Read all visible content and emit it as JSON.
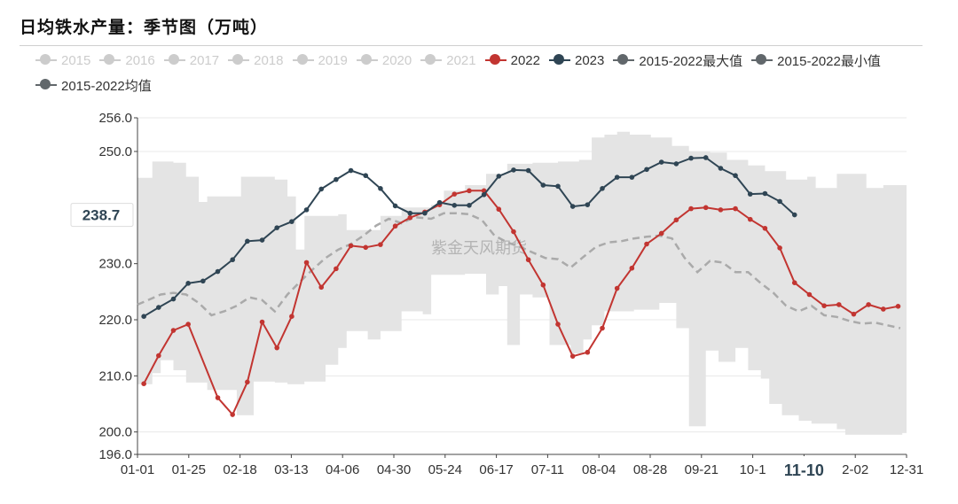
{
  "title": "日均铁水产量：季节图（万吨）",
  "watermark": "紫金天风期货",
  "colors": {
    "series_2022": "#c23531",
    "series_2023": "#2f4554",
    "range_fill": "#e4e4e4",
    "avg_line": "#aaaaaa",
    "inactive": "#cccccc",
    "active_legend_text": "#333333",
    "inactive_legend_text": "#cccccc"
  },
  "legend": [
    {
      "name": "2015",
      "active": false,
      "color": "#cccccc"
    },
    {
      "name": "2016",
      "active": false,
      "color": "#cccccc"
    },
    {
      "name": "2017",
      "active": false,
      "color": "#cccccc"
    },
    {
      "name": "2018",
      "active": false,
      "color": "#cccccc"
    },
    {
      "name": "2019",
      "active": false,
      "color": "#cccccc"
    },
    {
      "name": "2020",
      "active": false,
      "color": "#cccccc"
    },
    {
      "name": "2021",
      "active": false,
      "color": "#cccccc"
    },
    {
      "name": "2022",
      "active": true,
      "color": "#c23531"
    },
    {
      "name": "2023",
      "active": true,
      "color": "#2f4554"
    },
    {
      "name": "2015-2022最大值",
      "active": true,
      "color": "#61676b"
    },
    {
      "name": "2015-2022最小值",
      "active": true,
      "color": "#61676b"
    },
    {
      "name": "2015-2022均值",
      "active": true,
      "color": "#61676b"
    }
  ],
  "chart_data": {
    "type": "line",
    "x_start": "01-01",
    "x_end": "12-31",
    "xlim_days": [
      1,
      365
    ],
    "ylim": [
      196,
      256
    ],
    "y_ticks": [
      196.0,
      200.0,
      210.0,
      220.0,
      230.0,
      250.0,
      256.0
    ],
    "x_tick_labels": [
      "01-01",
      "01-25",
      "02-18",
      "03-13",
      "04-06",
      "04-30",
      "05-24",
      "06-17",
      "07-11",
      "08-04",
      "08-28",
      "09-21",
      "10-1",
      "11-10",
      "2-02",
      "12-31"
    ],
    "pointer": {
      "y_label": "238.7",
      "x_label": "11-10"
    },
    "band_max": [
      [
        1,
        245.3
      ],
      [
        5,
        245.3
      ],
      [
        8,
        248.2
      ],
      [
        18,
        248.0
      ],
      [
        24,
        245.5
      ],
      [
        30,
        241.0
      ],
      [
        34,
        242.0
      ],
      [
        48,
        242.0
      ],
      [
        50,
        245.5
      ],
      [
        62,
        245.5
      ],
      [
        66,
        245.0
      ],
      [
        72,
        242.0
      ],
      [
        76,
        232.5
      ],
      [
        80,
        238.5
      ],
      [
        90,
        238.5
      ],
      [
        96,
        238.8
      ],
      [
        100,
        236.0
      ],
      [
        110,
        236.0
      ],
      [
        116,
        238.5
      ],
      [
        126,
        240.0
      ],
      [
        140,
        240.5
      ],
      [
        146,
        243.0
      ],
      [
        156,
        244.0
      ],
      [
        166,
        246.0
      ],
      [
        176,
        247.8
      ],
      [
        188,
        248.0
      ],
      [
        200,
        248.2
      ],
      [
        210,
        248.5
      ],
      [
        216,
        252.5
      ],
      [
        222,
        253.0
      ],
      [
        228,
        253.5
      ],
      [
        234,
        253.0
      ],
      [
        244,
        252.5
      ],
      [
        254,
        251.0
      ],
      [
        262,
        250.0
      ],
      [
        272,
        249.8
      ],
      [
        280,
        248.5
      ],
      [
        290,
        247.5
      ],
      [
        298,
        246.5
      ],
      [
        308,
        245.0
      ],
      [
        318,
        245.5
      ],
      [
        322,
        243.5
      ],
      [
        332,
        246.0
      ],
      [
        342,
        246.0
      ],
      [
        346,
        243.5
      ],
      [
        354,
        244.0
      ],
      [
        365,
        244.5
      ]
    ],
    "band_min": [
      [
        1,
        208.5
      ],
      [
        5,
        208.5
      ],
      [
        8,
        210.5
      ],
      [
        12,
        212.8
      ],
      [
        18,
        211.0
      ],
      [
        24,
        208.8
      ],
      [
        34,
        207.5
      ],
      [
        48,
        203.0
      ],
      [
        50,
        203.0
      ],
      [
        56,
        209.0
      ],
      [
        66,
        208.8
      ],
      [
        72,
        208.5
      ],
      [
        80,
        209.0
      ],
      [
        90,
        212.0
      ],
      [
        96,
        215.0
      ],
      [
        100,
        218.0
      ],
      [
        110,
        216.5
      ],
      [
        116,
        218.0
      ],
      [
        126,
        221.5
      ],
      [
        136,
        221.0
      ],
      [
        140,
        228.0
      ],
      [
        156,
        228.2
      ],
      [
        166,
        224.5
      ],
      [
        172,
        226.0
      ],
      [
        176,
        215.5
      ],
      [
        178,
        215.5
      ],
      [
        182,
        224.5
      ],
      [
        188,
        224.0
      ],
      [
        196,
        215.5
      ],
      [
        206,
        214.0
      ],
      [
        212,
        216.5
      ],
      [
        216,
        219.0
      ],
      [
        222,
        221.5
      ],
      [
        236,
        221.8
      ],
      [
        248,
        223.0
      ],
      [
        256,
        218.5
      ],
      [
        262,
        201.0
      ],
      [
        266,
        201.0
      ],
      [
        270,
        214.5
      ],
      [
        276,
        212.5
      ],
      [
        284,
        215.0
      ],
      [
        290,
        211.0
      ],
      [
        296,
        209.5
      ],
      [
        300,
        205.0
      ],
      [
        306,
        203.0
      ],
      [
        314,
        202.0
      ],
      [
        320,
        201.5
      ],
      [
        332,
        200.5
      ],
      [
        336,
        199.5
      ],
      [
        342,
        199.5
      ],
      [
        350,
        199.5
      ],
      [
        358,
        199.5
      ],
      [
        363,
        199.8
      ],
      [
        365,
        200.0
      ]
    ],
    "series": [
      {
        "name": "2015-2022均值",
        "style": "dashed",
        "points": [
          [
            1,
            222.7
          ],
          [
            6,
            223.5
          ],
          [
            12,
            224.5
          ],
          [
            18,
            224.8
          ],
          [
            24,
            224.5
          ],
          [
            30,
            223.0
          ],
          [
            36,
            220.8
          ],
          [
            42,
            221.5
          ],
          [
            48,
            222.5
          ],
          [
            54,
            224.0
          ],
          [
            60,
            223.5
          ],
          [
            66,
            221.5
          ],
          [
            72,
            224.5
          ],
          [
            78,
            226.8
          ],
          [
            84,
            229.0
          ],
          [
            90,
            231.0
          ],
          [
            96,
            232.5
          ],
          [
            102,
            233.5
          ],
          [
            108,
            235.0
          ],
          [
            114,
            236.8
          ],
          [
            120,
            238.0
          ],
          [
            126,
            237.2
          ],
          [
            132,
            238.3
          ],
          [
            140,
            238.0
          ],
          [
            146,
            239.0
          ],
          [
            152,
            239.0
          ],
          [
            158,
            238.8
          ],
          [
            164,
            237.8
          ],
          [
            170,
            235.0
          ],
          [
            176,
            233.8
          ],
          [
            182,
            233.0
          ],
          [
            188,
            232.0
          ],
          [
            194,
            231.0
          ],
          [
            200,
            230.8
          ],
          [
            206,
            229.3
          ],
          [
            212,
            231.2
          ],
          [
            218,
            233.0
          ],
          [
            224,
            233.8
          ],
          [
            230,
            234.0
          ],
          [
            236,
            234.5
          ],
          [
            242,
            234.8
          ],
          [
            248,
            235.0
          ],
          [
            254,
            234.5
          ],
          [
            260,
            231.0
          ],
          [
            266,
            228.5
          ],
          [
            272,
            230.5
          ],
          [
            278,
            230.2
          ],
          [
            284,
            228.5
          ],
          [
            290,
            228.5
          ],
          [
            296,
            226.5
          ],
          [
            302,
            224.8
          ],
          [
            308,
            222.5
          ],
          [
            314,
            221.5
          ],
          [
            320,
            222.5
          ],
          [
            326,
            220.8
          ],
          [
            332,
            220.5
          ],
          [
            338,
            219.8
          ],
          [
            344,
            219.3
          ],
          [
            350,
            219.5
          ],
          [
            356,
            219.0
          ],
          [
            362,
            218.5
          ]
        ]
      },
      {
        "name": "2022",
        "style": "solid",
        "points": [
          [
            4,
            208.6
          ],
          [
            11,
            213.6
          ],
          [
            18,
            218.1
          ],
          [
            25,
            219.2
          ],
          [
            39,
            206.1
          ],
          [
            46,
            203.1
          ],
          [
            53,
            208.9
          ],
          [
            60,
            219.6
          ],
          [
            67,
            215.0
          ],
          [
            74,
            220.6
          ],
          [
            81,
            230.2
          ],
          [
            88,
            225.8
          ],
          [
            95,
            229.1
          ],
          [
            102,
            233.2
          ],
          [
            109,
            232.9
          ],
          [
            116,
            233.4
          ],
          [
            123,
            236.7
          ],
          [
            130,
            238.2
          ],
          [
            137,
            239.2
          ],
          [
            144,
            240.5
          ],
          [
            151,
            242.4
          ],
          [
            158,
            243.0
          ],
          [
            165,
            243.0
          ],
          [
            172,
            239.7
          ],
          [
            179,
            235.7
          ],
          [
            186,
            230.7
          ],
          [
            193,
            226.2
          ],
          [
            200,
            219.2
          ],
          [
            207,
            213.5
          ],
          [
            214,
            214.2
          ],
          [
            221,
            218.5
          ],
          [
            228,
            225.6
          ],
          [
            235,
            229.2
          ],
          [
            242,
            233.5
          ],
          [
            249,
            235.4
          ],
          [
            256,
            237.8
          ],
          [
            263,
            239.8
          ],
          [
            270,
            240.0
          ],
          [
            277,
            239.6
          ],
          [
            284,
            239.8
          ],
          [
            291,
            237.9
          ],
          [
            298,
            236.3
          ],
          [
            305,
            232.8
          ],
          [
            312,
            226.6
          ],
          [
            319,
            224.5
          ],
          [
            326,
            222.5
          ],
          [
            333,
            222.7
          ],
          [
            340,
            221.0
          ],
          [
            347,
            222.7
          ],
          [
            354,
            221.9
          ],
          [
            361,
            222.4
          ]
        ]
      },
      {
        "name": "2023",
        "style": "solid",
        "points": [
          [
            4,
            220.6
          ],
          [
            11,
            222.2
          ],
          [
            18,
            223.7
          ],
          [
            25,
            226.5
          ],
          [
            32,
            226.9
          ],
          [
            39,
            228.6
          ],
          [
            46,
            230.7
          ],
          [
            53,
            234.0
          ],
          [
            60,
            234.2
          ],
          [
            67,
            236.4
          ],
          [
            74,
            237.5
          ],
          [
            81,
            239.6
          ],
          [
            88,
            243.3
          ],
          [
            95,
            245.0
          ],
          [
            102,
            246.6
          ],
          [
            109,
            245.7
          ],
          [
            116,
            243.4
          ],
          [
            123,
            240.3
          ],
          [
            130,
            239.0
          ],
          [
            137,
            239.0
          ],
          [
            144,
            240.9
          ],
          [
            151,
            240.4
          ],
          [
            158,
            240.4
          ],
          [
            165,
            242.3
          ],
          [
            172,
            245.6
          ],
          [
            179,
            246.7
          ],
          [
            186,
            246.6
          ],
          [
            193,
            244.0
          ],
          [
            200,
            243.8
          ],
          [
            207,
            240.2
          ],
          [
            214,
            240.5
          ],
          [
            221,
            243.4
          ],
          [
            228,
            245.4
          ],
          [
            235,
            245.4
          ],
          [
            242,
            246.8
          ],
          [
            249,
            248.1
          ],
          [
            256,
            247.8
          ],
          [
            263,
            248.8
          ],
          [
            270,
            248.9
          ],
          [
            277,
            247.0
          ],
          [
            284,
            245.7
          ],
          [
            291,
            242.4
          ],
          [
            298,
            242.5
          ],
          [
            305,
            241.1
          ],
          [
            312,
            238.7
          ]
        ]
      }
    ]
  }
}
